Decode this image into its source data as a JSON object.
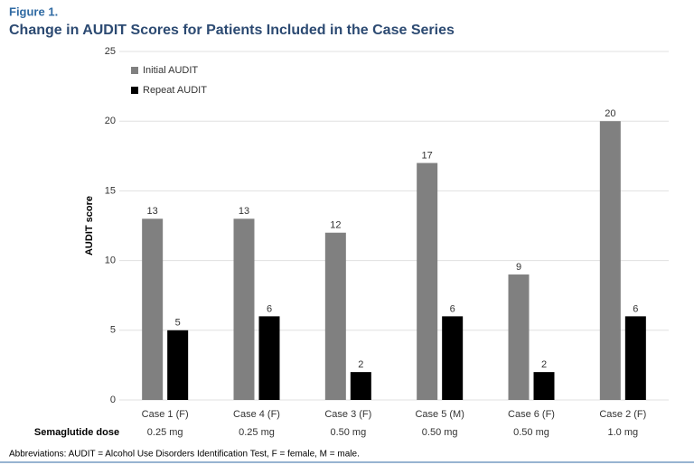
{
  "chart_data": {
    "type": "bar",
    "figure_label": "Figure 1.",
    "title": "Change in AUDIT Scores for Patients Included in the Case Series",
    "y_label": "AUDIT score",
    "categories": [
      "Case 1 (F)",
      "Case 4 (F)",
      "Case 3 (F)",
      "Case 5 (M)",
      "Case 6 (F)",
      "Case 2 (F)"
    ],
    "row_label": "Semaglutide dose",
    "doses": [
      "0.25 mg",
      "0.25 mg",
      "0.50 mg",
      "0.50 mg",
      "0.50 mg",
      "1.0 mg"
    ],
    "series": [
      {
        "name": "Initial AUDIT",
        "color": "#808080",
        "values": [
          13,
          13,
          12,
          17,
          9,
          20
        ]
      },
      {
        "name": "Repeat AUDIT",
        "color": "#000000",
        "values": [
          5,
          6,
          2,
          6,
          2,
          6
        ]
      }
    ],
    "ylim": [
      0,
      25
    ],
    "yticks": [
      0,
      5,
      10,
      15,
      20,
      25
    ],
    "grid": true,
    "legend": "upper-left",
    "footnote": "Abbreviations: AUDIT = Alcohol Use Disorders Identification Test, F = female, M = male."
  }
}
